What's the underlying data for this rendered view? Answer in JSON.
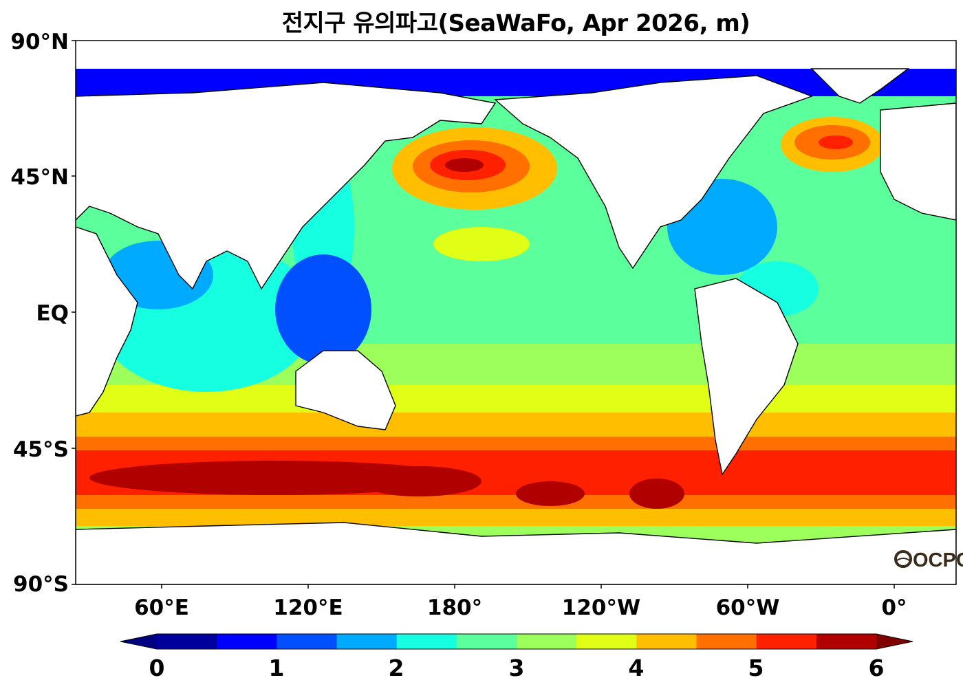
{
  "title": "전지구 유의파고(SeaWaFo, Apr 2026, m)",
  "watermark": "OCPC",
  "axes": {
    "y_ticks": [
      "90°N",
      "45°N",
      "EQ",
      "45°S",
      "90°S"
    ],
    "x_ticks": [
      "60°E",
      "120°E",
      "180°",
      "120°W",
      "60°W",
      "0°"
    ]
  },
  "colorbar": {
    "ticks": [
      "0",
      "1",
      "2",
      "3",
      "4",
      "5",
      "6"
    ],
    "colors": [
      "#00009c",
      "#0000ff",
      "#0050ff",
      "#00aaff",
      "#16ffe1",
      "#5bff9c",
      "#9cff5b",
      "#e1ff16",
      "#ffbf00",
      "#ff7000",
      "#ff2000",
      "#b10000"
    ],
    "under_color": "#000080",
    "over_color": "#800000"
  },
  "map_colors": {
    "land": "#ffffff",
    "coast": "#000000"
  }
}
